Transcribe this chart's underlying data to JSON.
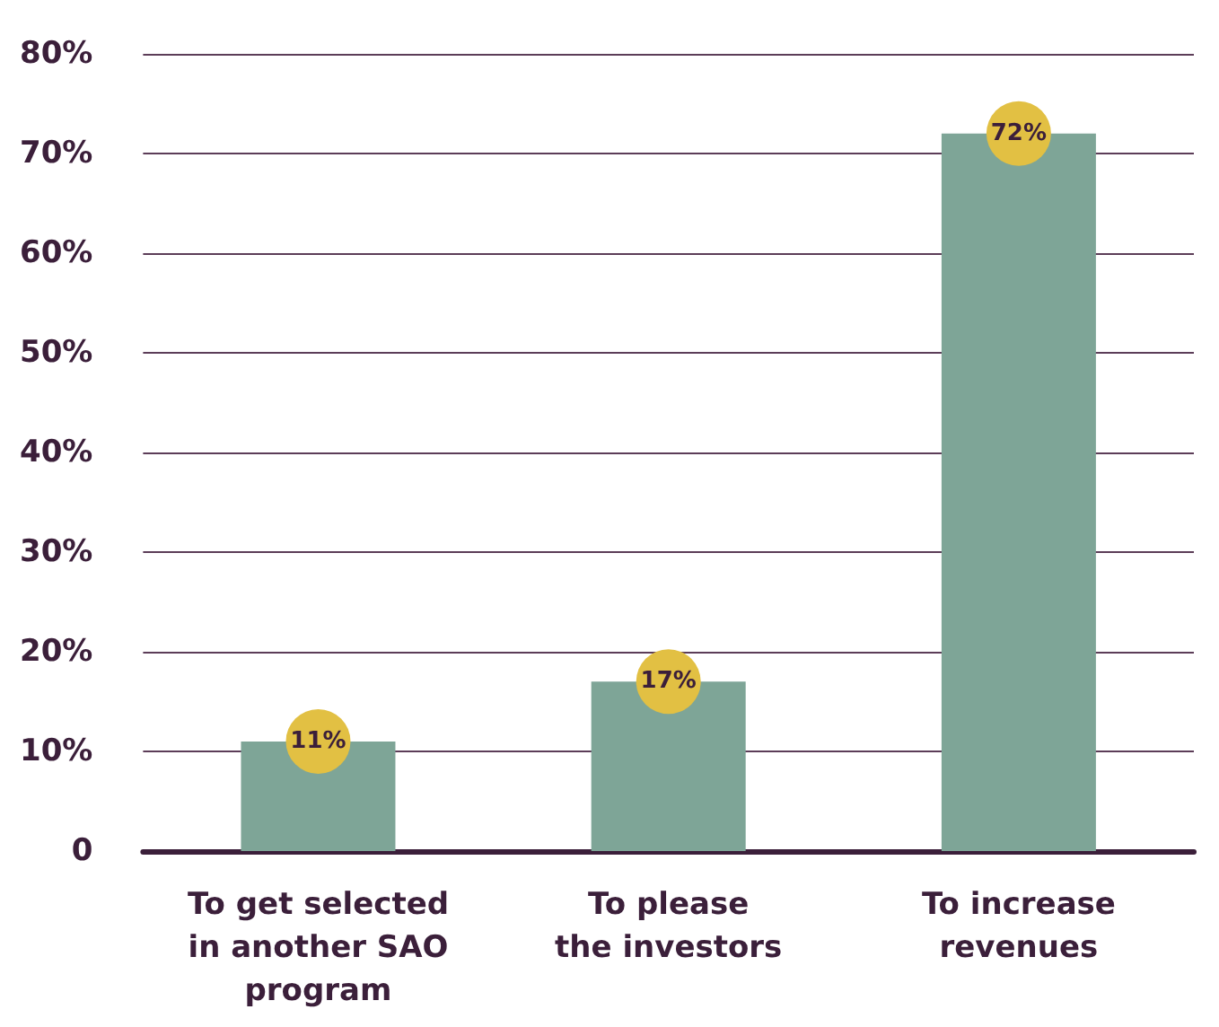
{
  "chart_data": {
    "type": "bar",
    "categories": [
      "To get selected\nin another SAO\nprogram",
      "To please\nthe investors",
      "To increase\nrevenues"
    ],
    "values": [
      11,
      17,
      72
    ],
    "color": "#7ea597",
    "value_labels": [
      "11%",
      "17%",
      "72%"
    ],
    "ylim": [
      0,
      80
    ],
    "yticks": [
      0,
      {
        "value": 10,
        "label": "10%"
      },
      {
        "value": 20,
        "label": "20%"
      },
      {
        "value": 30,
        "label": "30%"
      },
      {
        "value": 40,
        "label": "40%"
      },
      {
        "value": 50,
        "label": "50%"
      },
      {
        "value": 60,
        "label": "60%"
      },
      {
        "value": 70,
        "label": "70%"
      },
      {
        "value": 80,
        "label": "80%"
      }
    ],
    "grid": "y"
  }
}
